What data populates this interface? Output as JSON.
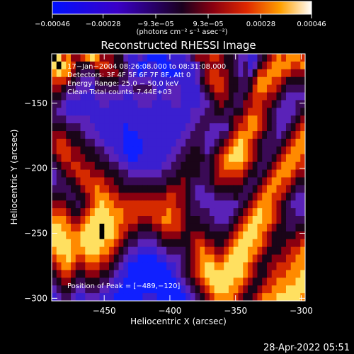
{
  "chart_data": {
    "type": "heatmap",
    "title": "Reconstructed RHESSI Image",
    "xlabel": "Heliocentric X (arcsec)",
    "ylabel": "Heliocentric Y (arcsec)",
    "xlim": [
      -490,
      -297
    ],
    "ylim": [
      -302,
      -112
    ],
    "x_ticks": [
      -450,
      -400,
      -350,
      -300
    ],
    "x_tick_labels": [
      "−450",
      "−400",
      "−350",
      "−300"
    ],
    "y_ticks": [
      -150,
      -200,
      -250,
      -300
    ],
    "y_tick_labels": [
      "−150",
      "−200",
      "−250",
      "−300"
    ],
    "colorbar": {
      "range": [
        -0.00046,
        0.00046
      ],
      "tick_values": [
        -0.00046,
        -0.00028,
        -9.3e-05,
        9.3e-05,
        0.00028,
        0.00046
      ],
      "tick_labels": [
        "−0.00046",
        "−0.00028",
        "−9.3e−05",
        "9.3e−05",
        "0.00028",
        "0.00046"
      ],
      "unit_label": "(photons cm⁻² s⁻¹ asec⁻²)"
    },
    "info_lines": [
      "17−Jan−2004 08:26:08.000 to 08:31:08.000",
      "Detectors: 3F 4F 5F 6F 7F 8F, Att 0",
      "Energy Range: 25.0 − 50.0 keV",
      "Clean    Total counts: 7.44E+03"
    ],
    "peak_label": "Position of Peak = [−489,−120]",
    "peak_position": [
      -489,
      -120
    ],
    "image_rows": [
      "98675567875554421121000011112355566544322113456767776",
      "89876444566654431100110001111124555544323124567777667",
      "78775433345555432101111000011123566554323246677766555",
      "66654322234444332222211111111124566654433457776654444",
      "55433222133333222333321122211113456654433467766543333",
      "44322211122222211222221222211112345554334566655432222",
      "33211111112211111122211112211112234544335566554322233",
      "32211111111111111111111111111222334433445666543222234",
      "33322222111111111111111111111223333334556776543222345",
      "44433322211111101111111111112233322224566776543223456",
      "55544432221111100011111111122333222335677765433234567",
      "56654443322111100001111111223333223456787654333345677",
      "56665544433221100001111112233443234567887654333456777",
      "45665554443322110011111122334444345678887654334567776",
      "34556655544433221111111223344443345677776543345677766",
      "23455666555444332222222333444443345666665443456777655",
      "23344566666554433333333344454333345555554334567766544",
      "33334456676655444444444455554322334444443345677665433",
      "44433445677766555555555566554322223333433456776654322",
      "55544345678776666666666666554332222222234567776543222",
      "66654456788877766666666676654333322222345678776543322",
      "77765567888887766655566776654443332223456788776543333",
      "88776678889887665544455666654444433334567887765443344",
      "88877788889887654433334555544555444445678887654444455",
      "88887788888776543322223444444566554456788877654445556",
      "78887778887765432211112233334567665567888776544455667",
      "67787667776654321100001122234567776678888765445556677",
      "56776556665543210000000011234567887788887654455666777",
      "45665445554432110000000001234567888888887654456667778",
      "34554334443321100000000000123456788888776544566777788",
      "23443223332211000000000000012345678887765445667778888",
      "12332112221110000001110000001234567777654456777888887"
    ]
  },
  "timestamp": "28-Apr-2022 05:51"
}
